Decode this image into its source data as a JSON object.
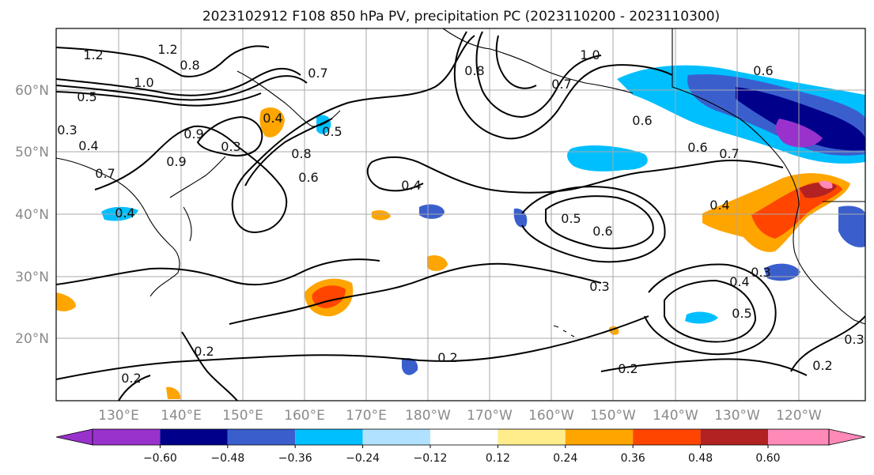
{
  "title": "2023102912 F108 850 hPa PV, precipitation PC (2023110200 - 2023110300)",
  "map": {
    "lon_labels": [
      "130°E",
      "140°E",
      "150°E",
      "160°E",
      "170°E",
      "180°W",
      "170°W",
      "160°W",
      "150°W",
      "140°W",
      "130°W",
      "120°W"
    ],
    "lat_labels": [
      "60°N",
      "50°N",
      "40°N",
      "30°N",
      "20°N"
    ],
    "grid": true
  },
  "colorbar": {
    "tick_labels": [
      "−0.60",
      "−0.48",
      "−0.36",
      "−0.24",
      "−0.12",
      "0.12",
      "0.24",
      "0.36",
      "0.48",
      "0.60"
    ],
    "colors": [
      "#9932cc",
      "#00008b",
      "#3a5fcd",
      "#00bfff",
      "#b0e2ff",
      "#ffffff",
      "#ffec8b",
      "#ffa500",
      "#ff4500",
      "#b22222",
      "#ff89b8"
    ],
    "extend": "both"
  },
  "contour_labels": [
    "1.2",
    "1.2",
    "1.0",
    "0.5",
    "0.3",
    "0.4",
    "0.7",
    "0.9",
    "0.8",
    "0.3",
    "0.4",
    "0.8",
    "0.7",
    "0.5",
    "0.6",
    "0.8",
    "0.9",
    "1.0",
    "0.7",
    "0.6",
    "0.6",
    "0.6",
    "0.7",
    "0.4",
    "0.4",
    "0.5",
    "0.6",
    "0.4",
    "0.3",
    "0.3",
    "0.4",
    "0.5",
    "0.2",
    "0.2",
    "0.2",
    "0.2",
    "0.2",
    "0.3"
  ]
}
